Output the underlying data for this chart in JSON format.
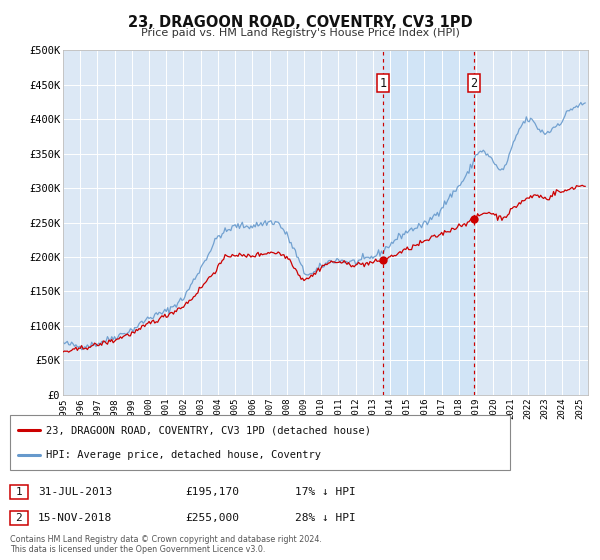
{
  "title": "23, DRAGOON ROAD, COVENTRY, CV3 1PD",
  "subtitle": "Price paid vs. HM Land Registry's House Price Index (HPI)",
  "background_color": "#ffffff",
  "plot_bg_color": "#dce8f5",
  "grid_color": "#c8d8e8",
  "ylim": [
    0,
    500000
  ],
  "yticks": [
    0,
    50000,
    100000,
    150000,
    200000,
    250000,
    300000,
    350000,
    400000,
    450000,
    500000
  ],
  "ytick_labels": [
    "£0",
    "£50K",
    "£100K",
    "£150K",
    "£200K",
    "£250K",
    "£300K",
    "£350K",
    "£400K",
    "£450K",
    "£500K"
  ],
  "xlim_start": 1995.0,
  "xlim_end": 2025.5,
  "xtick_years": [
    1995,
    1996,
    1997,
    1998,
    1999,
    2000,
    2001,
    2002,
    2003,
    2004,
    2005,
    2006,
    2007,
    2008,
    2009,
    2010,
    2011,
    2012,
    2013,
    2014,
    2015,
    2016,
    2017,
    2018,
    2019,
    2020,
    2021,
    2022,
    2023,
    2024,
    2025
  ],
  "sale1_x": 2013.58,
  "sale1_y": 195170,
  "sale1_label": "1",
  "sale2_x": 2018.88,
  "sale2_y": 255000,
  "sale2_label": "2",
  "hpi_color": "#6699cc",
  "price_color": "#cc0000",
  "marker_color": "#cc0000",
  "vline_color": "#cc0000",
  "span_color": "#d0e4f7",
  "legend_entry1": "23, DRAGOON ROAD, COVENTRY, CV3 1PD (detached house)",
  "legend_entry2": "HPI: Average price, detached house, Coventry",
  "table_row1_num": "1",
  "table_row1_date": "31-JUL-2013",
  "table_row1_price": "£195,170",
  "table_row1_hpi": "17% ↓ HPI",
  "table_row2_num": "2",
  "table_row2_date": "15-NOV-2018",
  "table_row2_price": "£255,000",
  "table_row2_hpi": "28% ↓ HPI",
  "footnote": "Contains HM Land Registry data © Crown copyright and database right 2024.\nThis data is licensed under the Open Government Licence v3.0."
}
